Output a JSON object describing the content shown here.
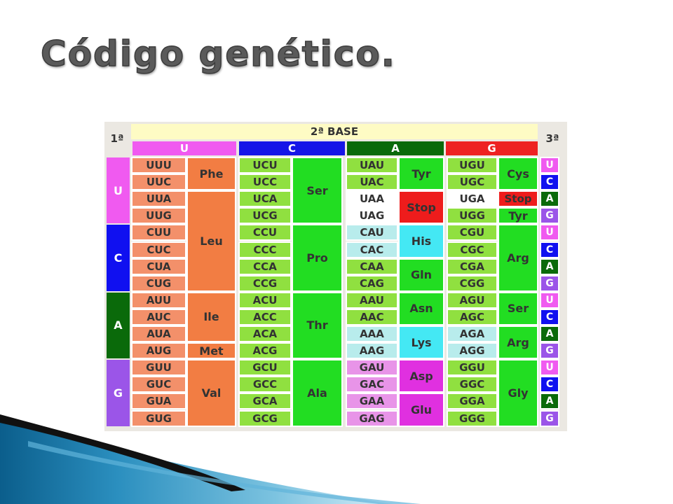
{
  "title": "Código genético.",
  "table": {
    "corner_left": "1ª",
    "corner_right": "3ª",
    "second_base_header": "2ª BASE",
    "second_bases": [
      "U",
      "C",
      "A",
      "G"
    ],
    "first_bases": [
      "U",
      "C",
      "A",
      "G"
    ],
    "third_bases": [
      "U",
      "C",
      "A",
      "G"
    ],
    "codons": [
      [
        "UUU",
        "UUC",
        "UUA",
        "UUG",
        "CUU",
        "CUC",
        "CUA",
        "CUG",
        "AUU",
        "AUC",
        "AUA",
        "AUG",
        "GUU",
        "GUC",
        "GUA",
        "GUG"
      ],
      [
        "UCU",
        "UCC",
        "UCA",
        "UCG",
        "CCU",
        "CCC",
        "CCA",
        "CCG",
        "ACU",
        "ACC",
        "ACA",
        "ACG",
        "GCU",
        "GCC",
        "GCA",
        "GCG"
      ],
      [
        "UAU",
        "UAC",
        "UAA",
        "UAG",
        "CAU",
        "CAC",
        "CAA",
        "CAG",
        "AAU",
        "AAC",
        "AAA",
        "AAG",
        "GAU",
        "GAC",
        "GAA",
        "GAG"
      ],
      [
        "UGU",
        "UGC",
        "UGA",
        "UGG",
        "CGU",
        "CGC",
        "CGA",
        "CGG",
        "AGU",
        "AGC",
        "AGA",
        "AGG",
        "GGU",
        "GGC",
        "GGA",
        "GGG"
      ]
    ],
    "amino_acids": [
      [
        {
          "label": "Phe",
          "rows": [
            0,
            1
          ]
        },
        {
          "label": "Leu",
          "rows": [
            2,
            7
          ]
        },
        {
          "label": "Ile",
          "rows": [
            8,
            10
          ]
        },
        {
          "label": "Met",
          "rows": [
            11,
            11
          ]
        },
        {
          "label": "Val",
          "rows": [
            12,
            15
          ]
        }
      ],
      [
        {
          "label": "Ser",
          "rows": [
            0,
            3
          ]
        },
        {
          "label": "Pro",
          "rows": [
            4,
            7
          ]
        },
        {
          "label": "Thr",
          "rows": [
            8,
            11
          ]
        },
        {
          "label": "Ala",
          "rows": [
            12,
            15
          ]
        }
      ],
      [
        {
          "label": "Tyr",
          "rows": [
            0,
            1
          ]
        },
        {
          "label": "Stop",
          "rows": [
            2,
            3
          ]
        },
        {
          "label": "His",
          "rows": [
            4,
            5
          ]
        },
        {
          "label": "Gln",
          "rows": [
            6,
            7
          ]
        },
        {
          "label": "Asn",
          "rows": [
            8,
            9
          ]
        },
        {
          "label": "Lys",
          "rows": [
            10,
            11
          ]
        },
        {
          "label": "Asp",
          "rows": [
            12,
            13
          ]
        },
        {
          "label": "Glu",
          "rows": [
            14,
            15
          ]
        }
      ],
      [
        {
          "label": "Cys",
          "rows": [
            0,
            1
          ]
        },
        {
          "label": "Stop",
          "rows": [
            2,
            2
          ]
        },
        {
          "label": "Tyr",
          "rows": [
            3,
            3
          ]
        },
        {
          "label": "Arg",
          "rows": [
            4,
            7
          ]
        },
        {
          "label": "Ser",
          "rows": [
            8,
            9
          ]
        },
        {
          "label": "Arg",
          "rows": [
            10,
            11
          ]
        },
        {
          "label": "Gly",
          "rows": [
            12,
            15
          ]
        }
      ]
    ]
  },
  "colors": {
    "header_bar": "#fefbc4",
    "base_U": "#f05af0",
    "base_C": "#1515e8",
    "base_A": "#0a6a0a",
    "base_G": "#ee2222",
    "side_U": "#f05af0",
    "side_C": "#1010f0",
    "side_A": "#0a6a0a",
    "side_G": "#9b55e8",
    "codon_col0": "#f3906a",
    "aa_col0": "#f27d43",
    "codon_col1": "#90e040",
    "aa_col1": "#22dd22",
    "codon_A_tyr": "#90e040",
    "codon_white": "#ffffff",
    "codon_his": "#b8ecec",
    "codon_gln": "#90e040",
    "codon_asn": "#90e040",
    "codon_lys": "#b8ecec",
    "codon_asp": "#e894e8",
    "codon_glu": "#e894e8",
    "aa_tyr": "#22dd22",
    "aa_stop": "#ee1c1c",
    "aa_his": "#44e8f4",
    "aa_gln": "#22dd22",
    "aa_asn": "#22dd22",
    "aa_lys": "#44e8f4",
    "aa_asp": "#e030e0",
    "aa_glu": "#e030e0",
    "codon_G_cys": "#90e040",
    "codon_G_white": "#ffffff",
    "codon_G_green": "#90e040",
    "codon_G_agaagg": "#b8ecec",
    "aa_G_green": "#22dd22",
    "aa_G_stop": "#ee1c1c",
    "aa_G_lys": "#44e8f4"
  }
}
